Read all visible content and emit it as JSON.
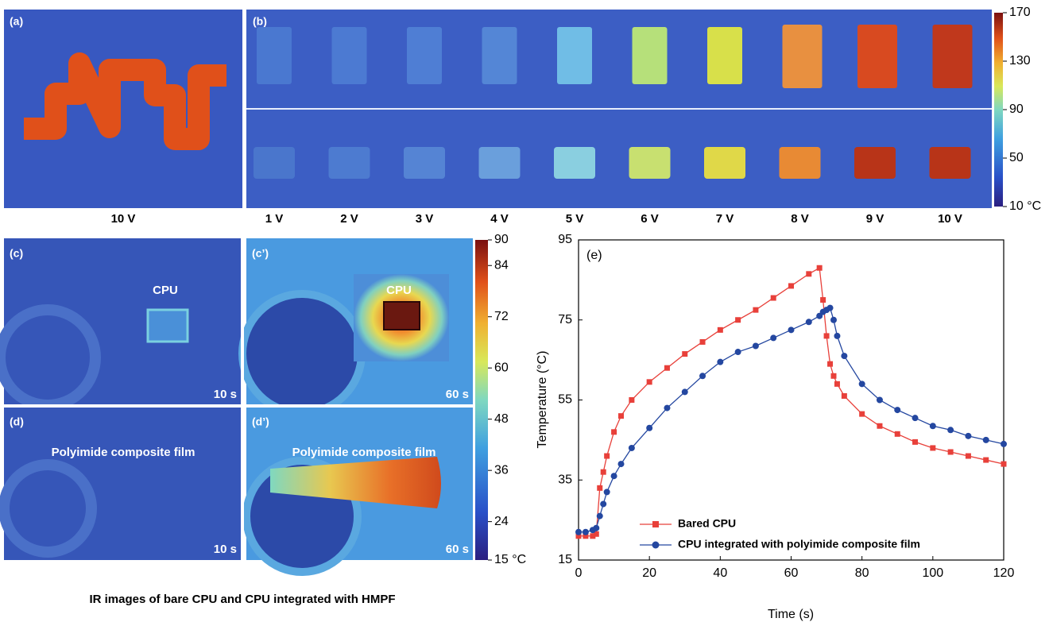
{
  "panel_a": {
    "label": "(a)",
    "caption": "10 V"
  },
  "panel_b": {
    "label": "(b)",
    "voltages": [
      "1 V",
      "2 V",
      "3 V",
      "4 V",
      "5 V",
      "6 V",
      "7 V",
      "8 V",
      "9 V",
      "10 V"
    ]
  },
  "colorbar_1": {
    "ticks": [
      170,
      130,
      90,
      50,
      {
        "value": 10,
        "label": "10 °C"
      }
    ]
  },
  "panel_c": {
    "label": "(c)",
    "annotation": "CPU",
    "time": "10 s"
  },
  "panel_c2": {
    "label": "(c’)",
    "annotation": "CPU",
    "time": "60 s"
  },
  "panel_d": {
    "label": "(d)",
    "annotation": "Polyimide composite film",
    "time": "10 s"
  },
  "panel_d2": {
    "label": "(d’)",
    "annotation": "Polyimide composite film",
    "time": "60 s"
  },
  "colorbar_2": {
    "ticks": [
      90,
      84,
      72,
      60,
      48,
      36,
      24,
      {
        "value": 15,
        "label": "15 °C"
      }
    ]
  },
  "caption": "IR images of bare CPU and CPU integrated with HMPF",
  "chart_data": {
    "type": "line",
    "panel_label": "(e)",
    "x_label": "Time (s)",
    "y_label": "Temperature (°C)",
    "x": [
      0,
      2,
      4,
      5,
      6,
      7,
      8,
      10,
      12,
      15,
      20,
      25,
      30,
      35,
      40,
      45,
      50,
      55,
      60,
      65,
      68,
      69,
      70,
      71,
      72,
      73,
      75,
      80,
      85,
      90,
      95,
      100,
      105,
      110,
      115,
      120
    ],
    "series": [
      {
        "name": "Bared CPU",
        "color": "#e8403a",
        "marker": "square",
        "values": [
          21,
          21,
          21,
          21.5,
          33,
          37,
          41,
          47,
          51,
          55,
          59.5,
          63,
          66.5,
          69.5,
          72.5,
          75,
          77.5,
          80.5,
          83.5,
          86.5,
          88,
          80,
          71,
          64,
          61,
          59,
          56,
          51.5,
          48.5,
          46.5,
          44.5,
          43,
          42,
          41,
          40,
          39
        ]
      },
      {
        "name": "CPU integrated with polyimide composite film",
        "color": "#2447a0",
        "marker": "circle",
        "values": [
          22,
          22,
          22.5,
          23,
          26,
          29,
          32,
          36,
          39,
          43,
          48,
          53,
          57,
          61,
          64.5,
          67,
          68.5,
          70.5,
          72.5,
          74.5,
          76,
          77,
          77.5,
          78,
          75,
          71,
          66,
          59,
          55,
          52.5,
          50.5,
          48.5,
          47.5,
          46,
          45,
          44
        ]
      }
    ],
    "xlim": [
      0,
      120
    ],
    "ylim": [
      15,
      95
    ],
    "xticks": [
      0,
      20,
      40,
      60,
      80,
      100,
      120
    ],
    "yticks": [
      15,
      35,
      55,
      75,
      95
    ],
    "legend": "lower center"
  }
}
